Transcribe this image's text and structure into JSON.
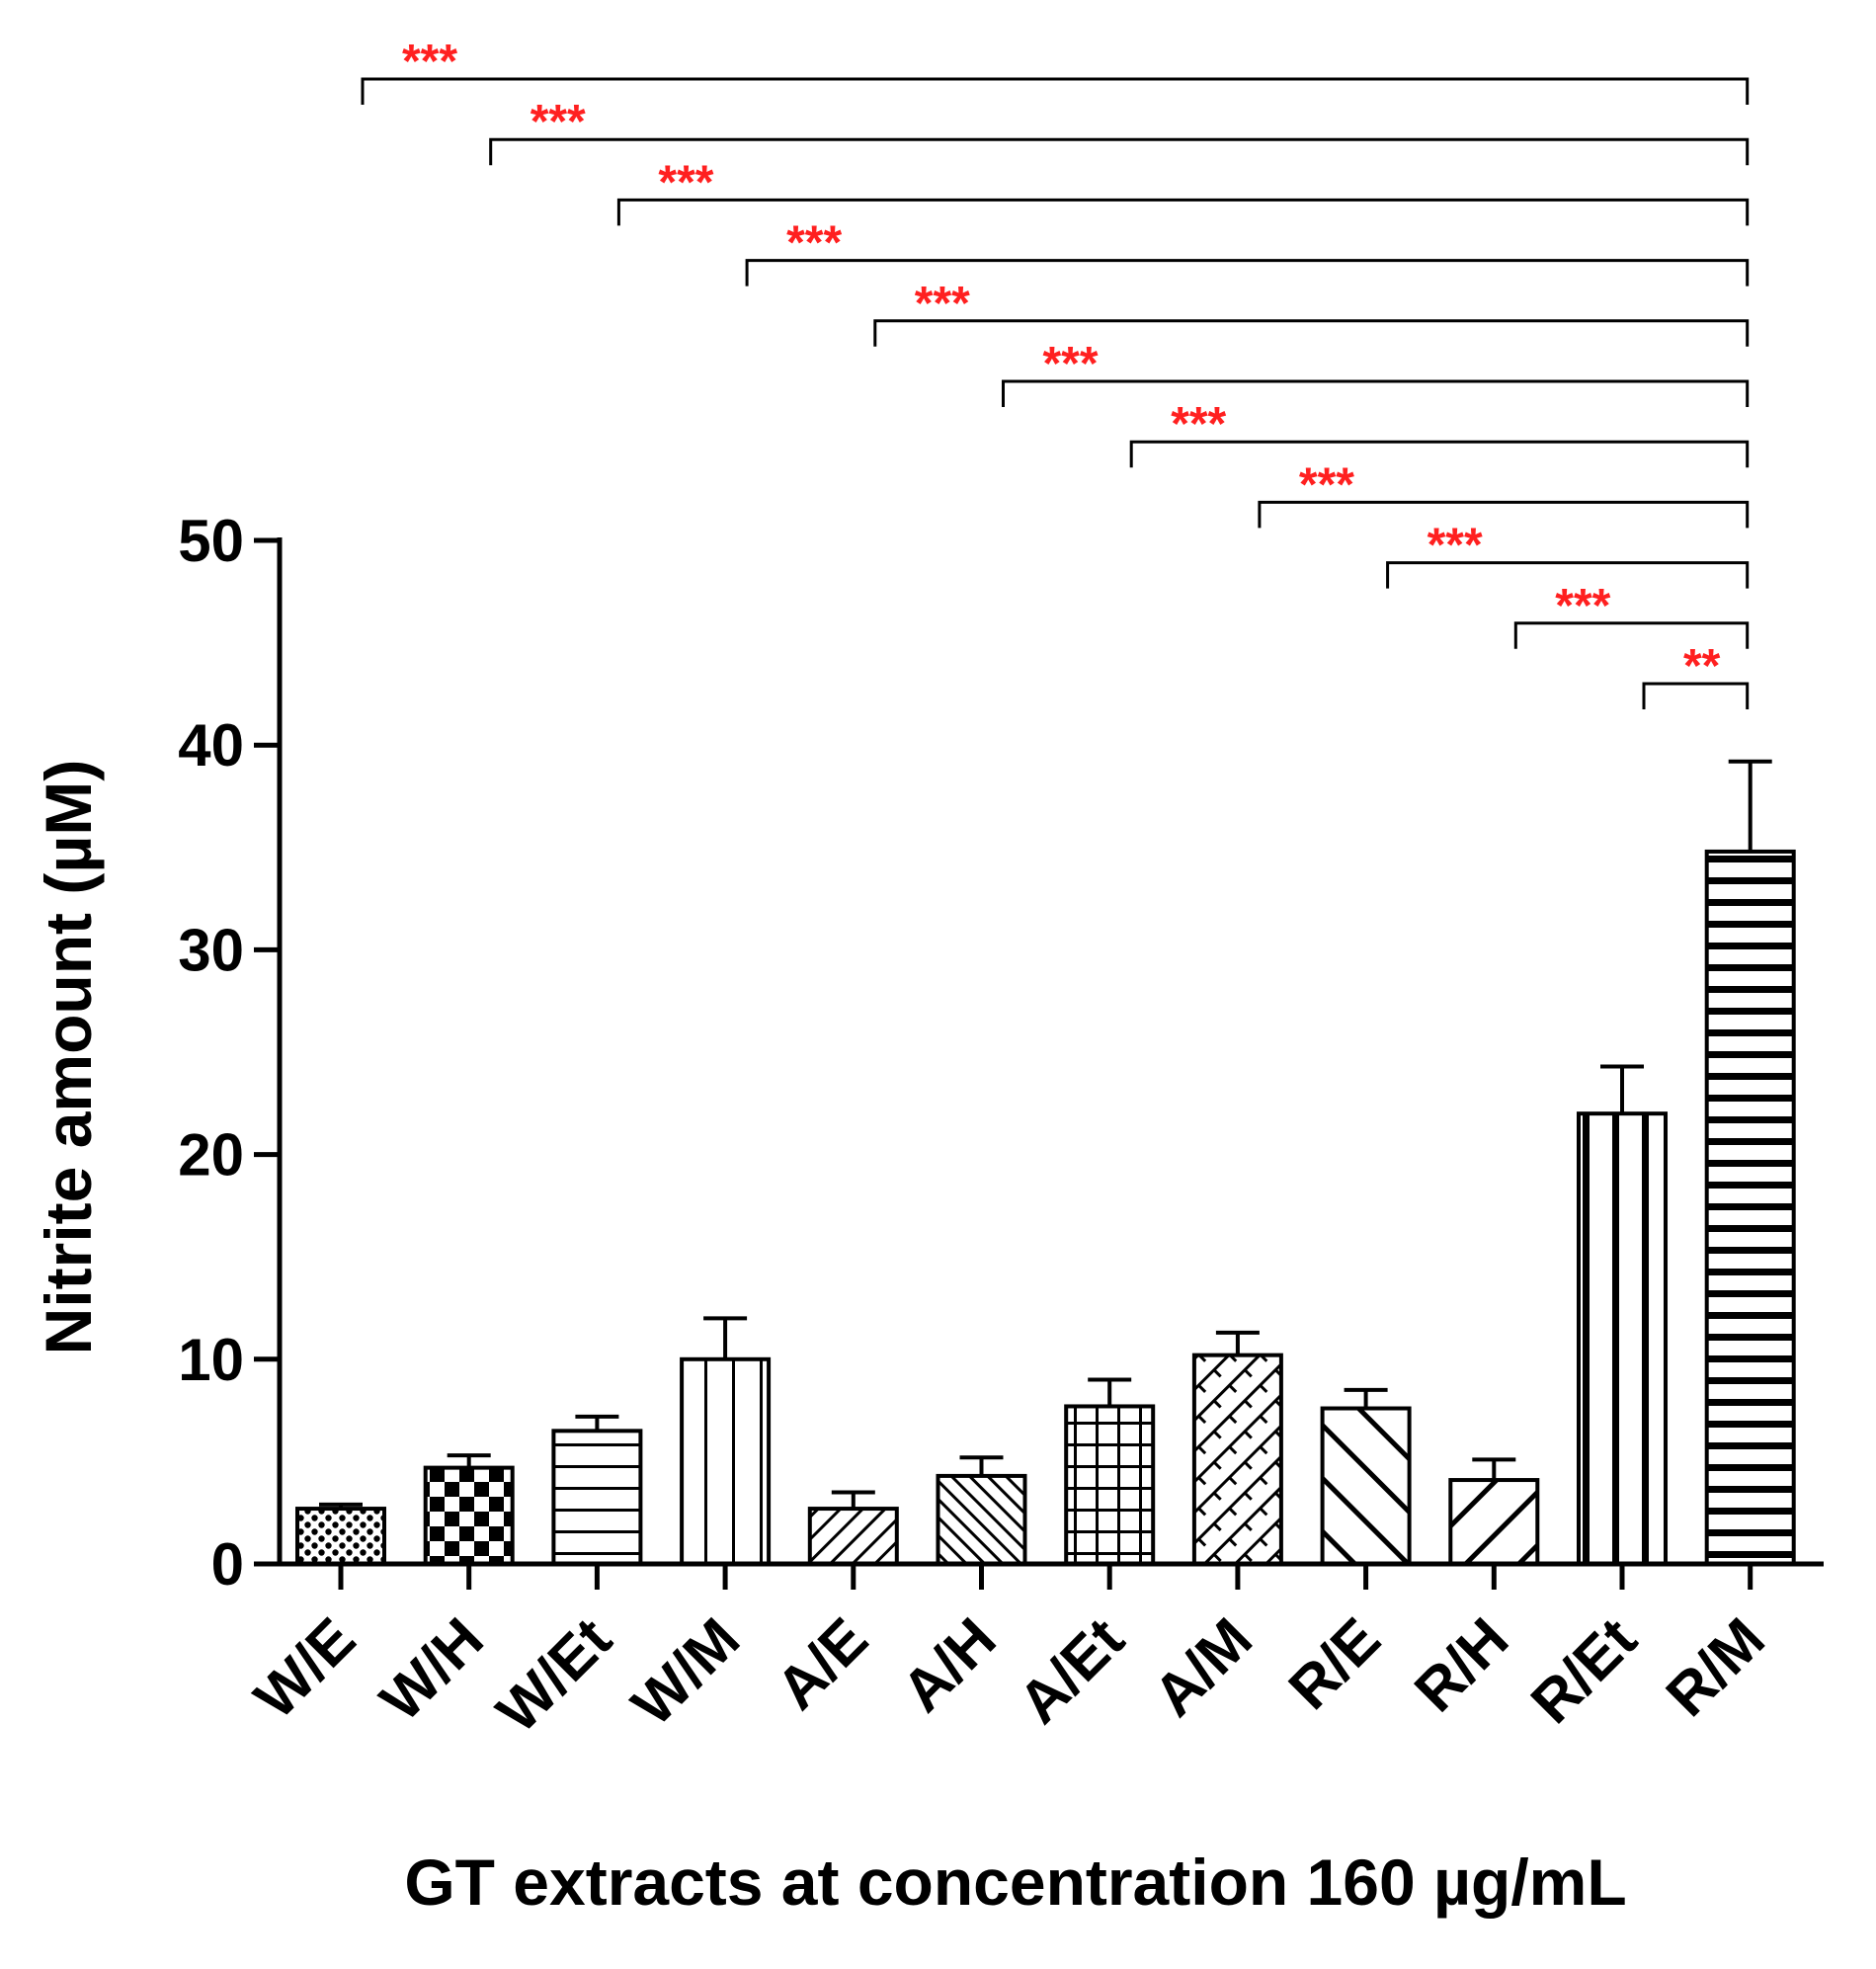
{
  "chart_data": {
    "type": "bar",
    "title": "",
    "xlabel": "GT extracts at concentration 160 µg/mL",
    "ylabel": "Nitrite amount (µM)",
    "ylim": [
      0,
      50
    ],
    "yticks": [
      0,
      10,
      20,
      30,
      40,
      50
    ],
    "ytick_labels": [
      "0",
      "10",
      "20",
      "30",
      "40",
      "50"
    ],
    "grid": false,
    "categories": [
      "W/E",
      "W/H",
      "W/Et",
      "W/M",
      "A/E",
      "A/H",
      "A/Et",
      "A/M",
      "R/E",
      "R/H",
      "R/Et",
      "R/M"
    ],
    "values": [
      2.7,
      4.7,
      6.5,
      10.0,
      2.7,
      4.3,
      7.7,
      10.2,
      7.6,
      4.1,
      22.0,
      34.8
    ],
    "errors": [
      0.2,
      0.6,
      0.7,
      2.0,
      0.8,
      0.9,
      1.3,
      1.1,
      0.9,
      1.0,
      2.3,
      4.4
    ],
    "patterns": [
      "dots",
      "checker",
      "hlines",
      "vlines",
      "diag-up",
      "diag-down",
      "grid",
      "diag-cross",
      "diag-down-wide",
      "diag-up-wide",
      "vlines-thick",
      "hlines-thick"
    ],
    "significance": [
      {
        "from": "W/E",
        "to": "R/M",
        "label": "***"
      },
      {
        "from": "W/H",
        "to": "R/M",
        "label": "***"
      },
      {
        "from": "W/Et",
        "to": "R/M",
        "label": "***"
      },
      {
        "from": "W/M",
        "to": "R/M",
        "label": "***"
      },
      {
        "from": "A/E",
        "to": "R/M",
        "label": "***"
      },
      {
        "from": "A/H",
        "to": "R/M",
        "label": "***"
      },
      {
        "from": "A/Et",
        "to": "R/M",
        "label": "***"
      },
      {
        "from": "A/M",
        "to": "R/M",
        "label": "***"
      },
      {
        "from": "R/E",
        "to": "R/M",
        "label": "***"
      },
      {
        "from": "R/H",
        "to": "R/M",
        "label": "***"
      },
      {
        "from": "R/Et",
        "to": "R/M",
        "label": "**"
      }
    ],
    "colors": {
      "bar_stroke": "#000000",
      "significance": "#ff2020",
      "axis": "#000000"
    }
  }
}
